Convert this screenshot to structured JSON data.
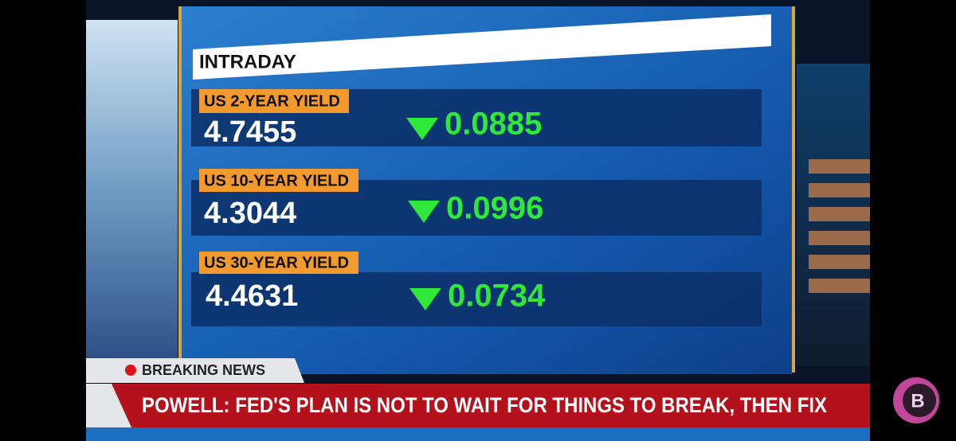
{
  "board": {
    "title": "INTRADAY",
    "rows": [
      {
        "label": "US 2-YEAR YIELD",
        "value": "4.7455",
        "change": "0.0885"
      },
      {
        "label": "US 10-YEAR YIELD",
        "value": "4.3044",
        "change": "0.0996"
      },
      {
        "label": "US 30-YEAR YIELD",
        "value": "4.4631",
        "change": "0.0734"
      }
    ]
  },
  "ticker": {
    "tag": "BREAKING NEWS",
    "headline": "POWELL: FED'S PLAN IS NOT TO WAIT FOR THINGS TO BREAK, THEN FIX"
  },
  "logo": {
    "letter": "B"
  }
}
